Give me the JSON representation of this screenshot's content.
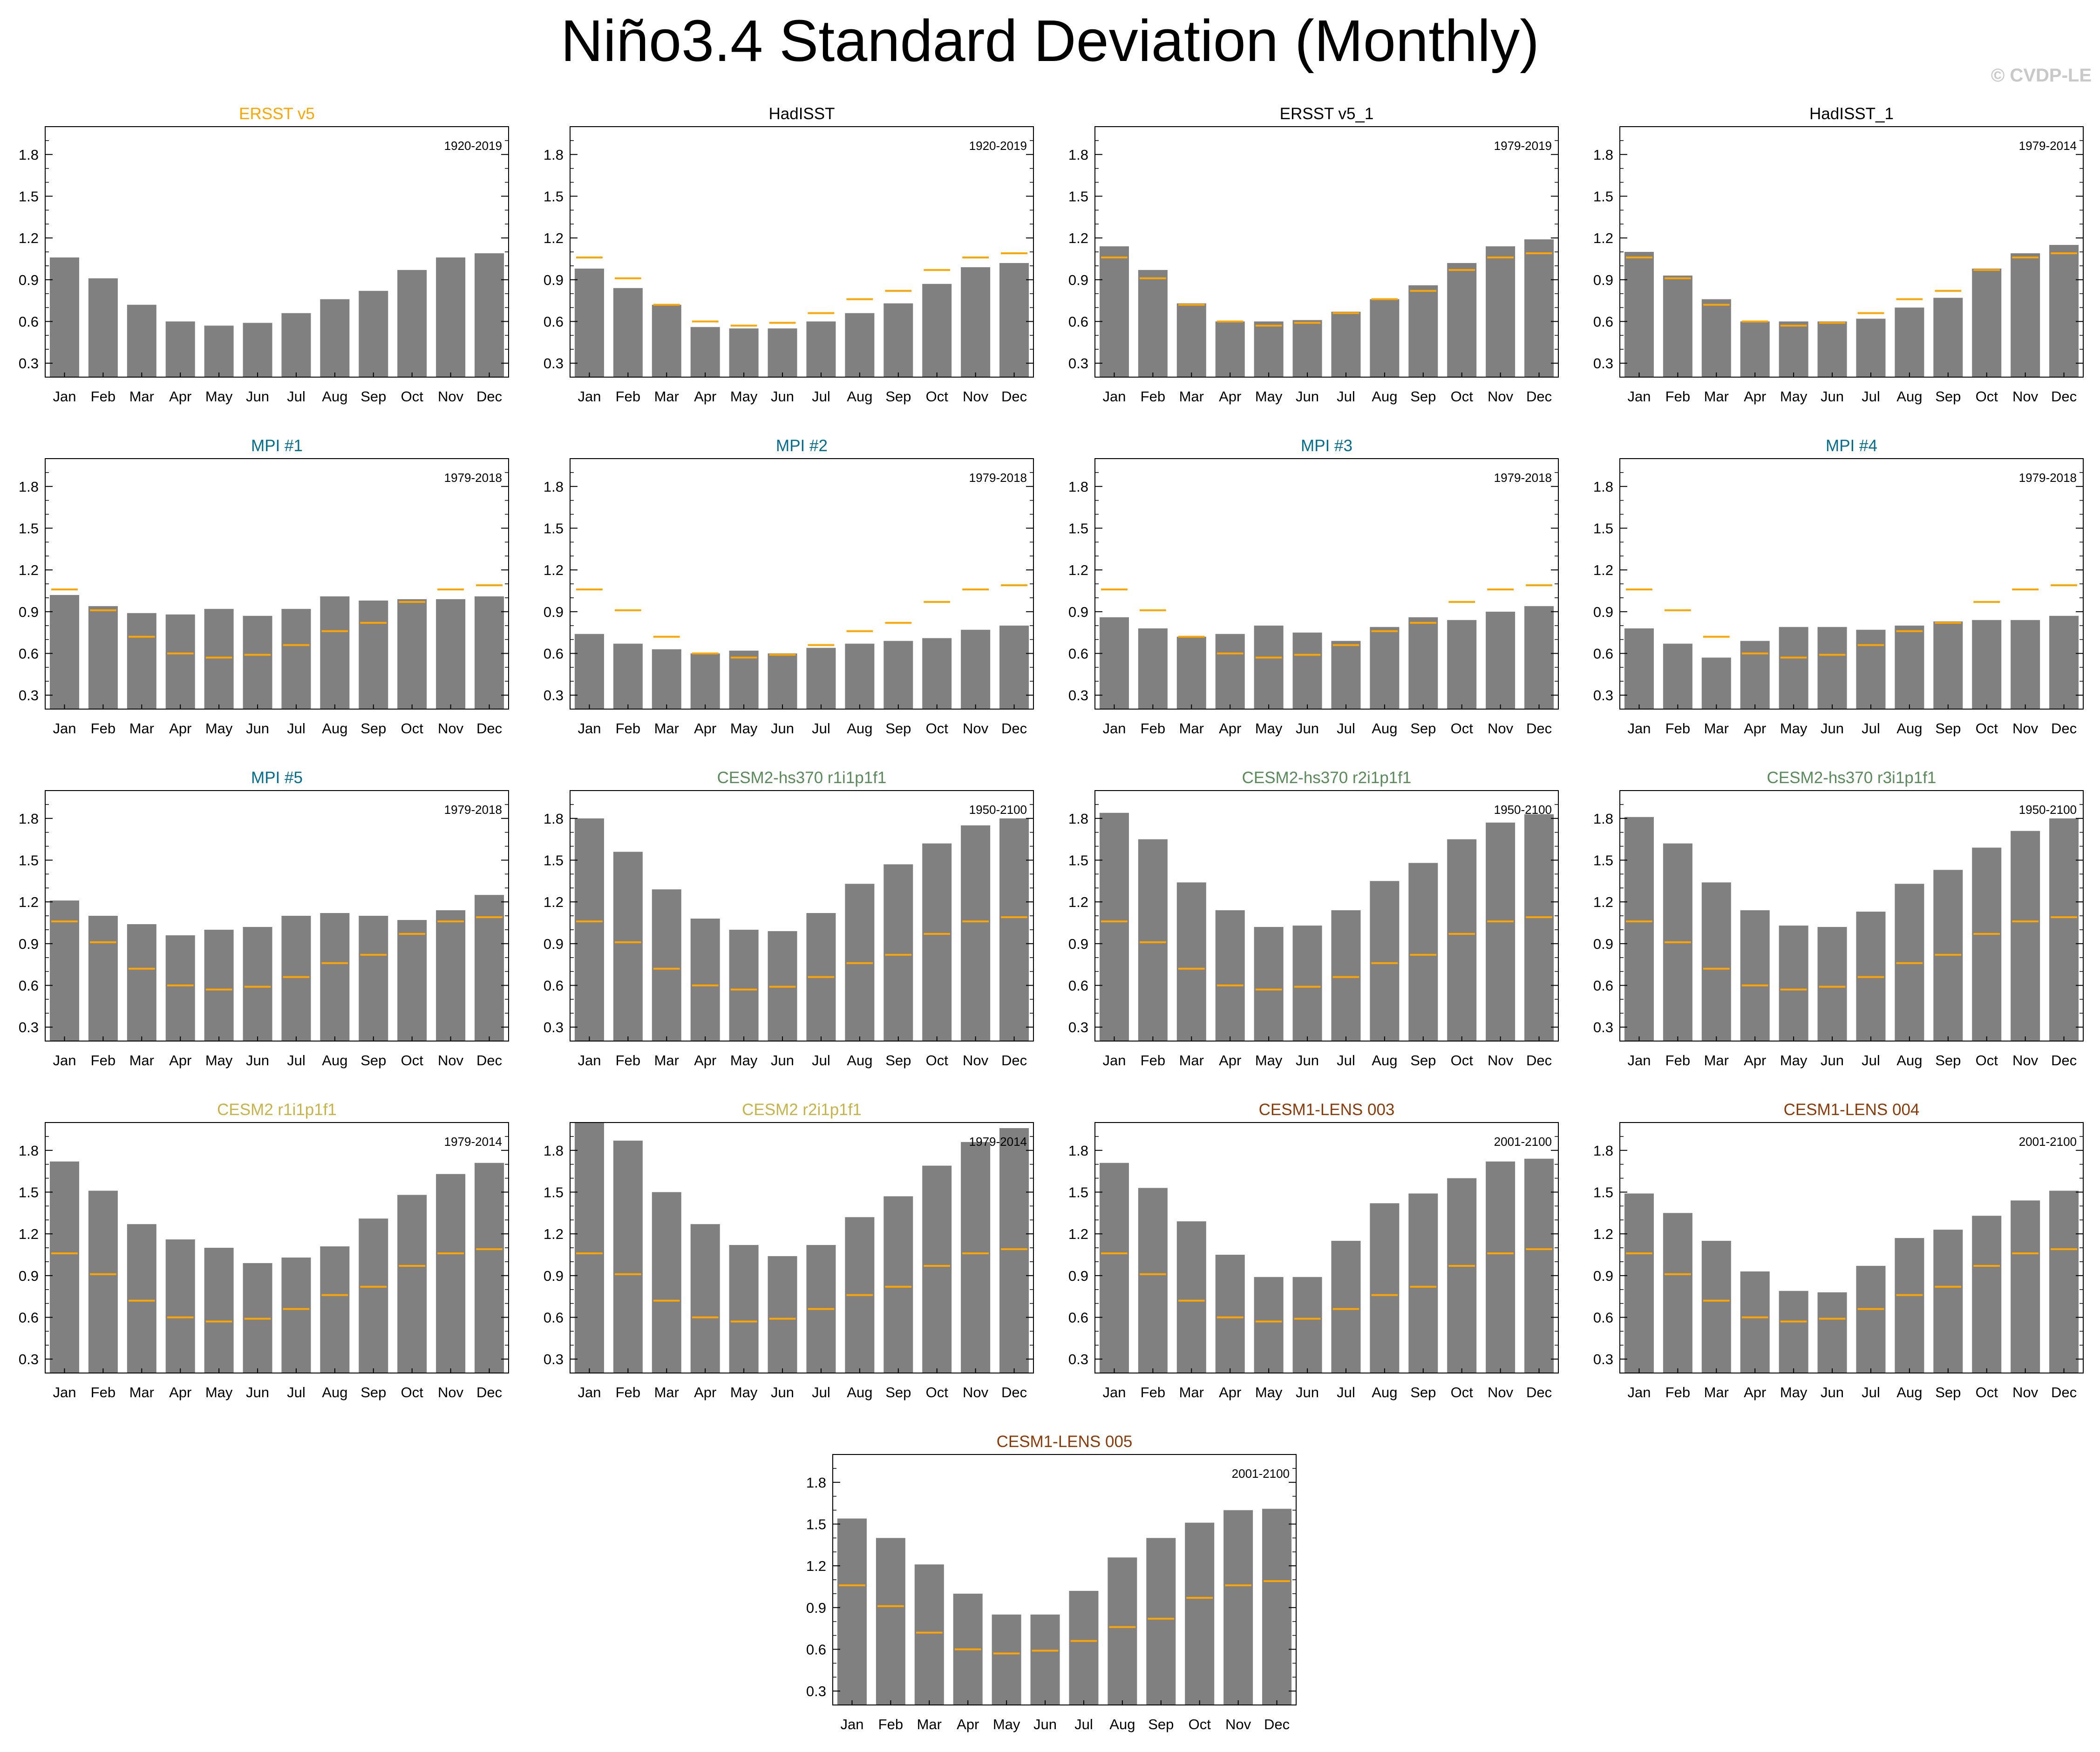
{
  "title": "Niño3.4 Standard Deviation (Monthly)",
  "watermark": "© CVDP-LE",
  "colors": {
    "bar": "#808080",
    "obs_line": "#ffa500",
    "obs_title": "#ffa500",
    "black_title": "#000000",
    "mpi_title": "#006d8f",
    "cesm2hs_title": "#5a8a5a",
    "cesm2_title": "#c8b24a",
    "cesm1_title": "#8b3a0a"
  },
  "chart_data": {
    "type": "bar",
    "categories": [
      "Jan",
      "Feb",
      "Mar",
      "Apr",
      "May",
      "Jun",
      "Jul",
      "Aug",
      "Sep",
      "Oct",
      "Nov",
      "Dec"
    ],
    "ylim": [
      0.2,
      2.0
    ],
    "yticks": [
      "0.3",
      "0.6",
      "0.9",
      "1.2",
      "1.5",
      "1.8"
    ],
    "reference_series": [
      1.06,
      0.91,
      0.72,
      0.6,
      0.57,
      0.59,
      0.66,
      0.76,
      0.82,
      0.97,
      1.06,
      1.09
    ],
    "panels": [
      {
        "title": "ERSST v5",
        "title_color": "obs_title",
        "period": "1920-2019",
        "values": [
          1.06,
          0.91,
          0.72,
          0.6,
          0.57,
          0.59,
          0.66,
          0.76,
          0.82,
          0.97,
          1.06,
          1.09
        ],
        "show_ref": false
      },
      {
        "title": "HadISST",
        "title_color": "black_title",
        "period": "1920-2019",
        "values": [
          0.98,
          0.84,
          0.72,
          0.56,
          0.55,
          0.55,
          0.6,
          0.66,
          0.73,
          0.87,
          0.99,
          1.02
        ],
        "show_ref": true
      },
      {
        "title": "ERSST v5_1",
        "title_color": "black_title",
        "period": "1979-2019",
        "values": [
          1.14,
          0.97,
          0.73,
          0.6,
          0.6,
          0.61,
          0.67,
          0.76,
          0.86,
          1.02,
          1.14,
          1.19
        ],
        "show_ref": true
      },
      {
        "title": "HadISST_1",
        "title_color": "black_title",
        "period": "1979-2014",
        "values": [
          1.1,
          0.93,
          0.76,
          0.6,
          0.6,
          0.6,
          0.62,
          0.7,
          0.77,
          0.98,
          1.09,
          1.15
        ],
        "show_ref": true
      },
      {
        "title": "MPI #1",
        "title_color": "mpi_title",
        "period": "1979-2018",
        "values": [
          1.02,
          0.94,
          0.89,
          0.88,
          0.92,
          0.87,
          0.92,
          1.01,
          0.98,
          0.99,
          0.99,
          1.01
        ],
        "show_ref": true
      },
      {
        "title": "MPI #2",
        "title_color": "mpi_title",
        "period": "1979-2018",
        "values": [
          0.74,
          0.67,
          0.63,
          0.6,
          0.62,
          0.6,
          0.64,
          0.67,
          0.69,
          0.71,
          0.77,
          0.8
        ],
        "show_ref": true
      },
      {
        "title": "MPI #3",
        "title_color": "mpi_title",
        "period": "1979-2018",
        "values": [
          0.86,
          0.78,
          0.72,
          0.74,
          0.8,
          0.75,
          0.69,
          0.79,
          0.86,
          0.84,
          0.9,
          0.94
        ],
        "show_ref": true
      },
      {
        "title": "MPI #4",
        "title_color": "mpi_title",
        "period": "1979-2018",
        "values": [
          0.78,
          0.67,
          0.57,
          0.69,
          0.79,
          0.79,
          0.77,
          0.8,
          0.83,
          0.84,
          0.84,
          0.87
        ],
        "show_ref": true
      },
      {
        "title": "MPI #5",
        "title_color": "mpi_title",
        "period": "1979-2018",
        "values": [
          1.21,
          1.1,
          1.04,
          0.96,
          1.0,
          1.02,
          1.1,
          1.12,
          1.1,
          1.07,
          1.14,
          1.25
        ],
        "show_ref": true
      },
      {
        "title": "CESM2-hs370 r1i1p1f1",
        "title_color": "cesm2hs_title",
        "period": "1950-2100",
        "values": [
          1.8,
          1.56,
          1.29,
          1.08,
          1.0,
          0.99,
          1.12,
          1.33,
          1.47,
          1.62,
          1.75,
          1.8
        ],
        "show_ref": true
      },
      {
        "title": "CESM2-hs370 r2i1p1f1",
        "title_color": "cesm2hs_title",
        "period": "1950-2100",
        "values": [
          1.84,
          1.65,
          1.34,
          1.14,
          1.02,
          1.03,
          1.14,
          1.35,
          1.48,
          1.65,
          1.77,
          1.83
        ],
        "show_ref": true
      },
      {
        "title": "CESM2-hs370 r3i1p1f1",
        "title_color": "cesm2hs_title",
        "period": "1950-2100",
        "values": [
          1.81,
          1.62,
          1.34,
          1.14,
          1.03,
          1.02,
          1.13,
          1.33,
          1.43,
          1.59,
          1.71,
          1.8
        ],
        "show_ref": true
      },
      {
        "title": "CESM2 r1i1p1f1",
        "title_color": "cesm2_title",
        "period": "1979-2014",
        "values": [
          1.72,
          1.51,
          1.27,
          1.16,
          1.1,
          0.99,
          1.03,
          1.11,
          1.31,
          1.48,
          1.63,
          1.71
        ],
        "show_ref": true
      },
      {
        "title": "CESM2 r2i1p1f1",
        "title_color": "cesm2_title",
        "period": "1979-2014",
        "values": [
          2.01,
          1.87,
          1.5,
          1.27,
          1.12,
          1.04,
          1.12,
          1.32,
          1.47,
          1.69,
          1.86,
          1.96
        ],
        "show_ref": true
      },
      {
        "title": "CESM1-LENS 003",
        "title_color": "cesm1_title",
        "period": "2001-2100",
        "values": [
          1.71,
          1.53,
          1.29,
          1.05,
          0.89,
          0.89,
          1.15,
          1.42,
          1.49,
          1.6,
          1.72,
          1.74
        ],
        "show_ref": true
      },
      {
        "title": "CESM1-LENS 004",
        "title_color": "cesm1_title",
        "period": "2001-2100",
        "values": [
          1.49,
          1.35,
          1.15,
          0.93,
          0.79,
          0.78,
          0.97,
          1.17,
          1.23,
          1.33,
          1.44,
          1.51
        ],
        "show_ref": true
      },
      {
        "title": "CESM1-LENS 005",
        "title_color": "cesm1_title",
        "period": "2001-2100",
        "values": [
          1.54,
          1.4,
          1.21,
          1.0,
          0.85,
          0.85,
          1.02,
          1.26,
          1.4,
          1.51,
          1.6,
          1.61
        ],
        "show_ref": true
      }
    ]
  }
}
